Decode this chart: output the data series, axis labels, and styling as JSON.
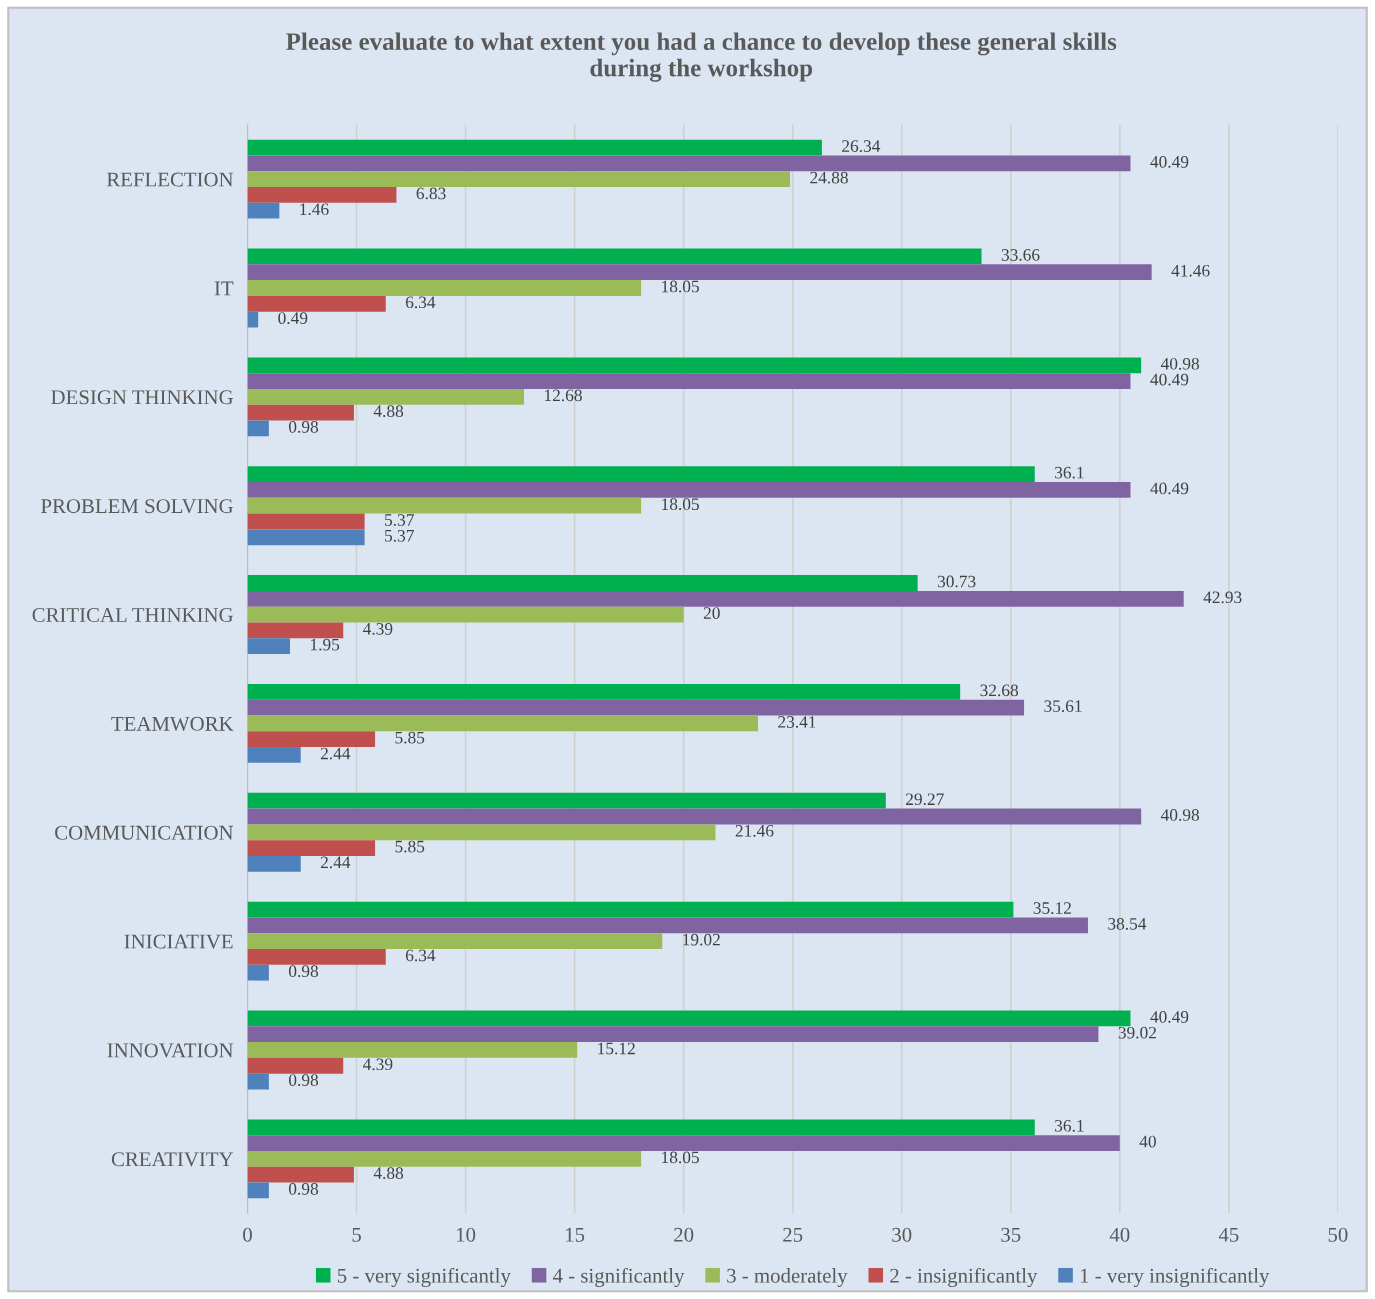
{
  "chart_data": {
    "type": "bar",
    "orientation": "horizontal",
    "title": "Please evaluate to what extent you had a chance to develop these general skills\nduring the workshop",
    "categories": [
      "REFLECTION",
      "IT",
      "DESIGN THINKING",
      "PROBLEM SOLVING",
      "CRITICAL THINKING",
      "TEAMWORK",
      "COMMUNICATION",
      "INICIATIVE",
      "INNOVATION",
      "CREATIVITY"
    ],
    "series": [
      {
        "name": "5 - very significantly",
        "color": "#00b050",
        "values": [
          26.34,
          33.66,
          40.98,
          36.1,
          30.73,
          32.68,
          29.27,
          35.12,
          40.49,
          36.1
        ]
      },
      {
        "name": "4 - significantly",
        "color": "#8064a2",
        "values": [
          40.49,
          41.46,
          40.49,
          40.49,
          42.93,
          35.61,
          40.98,
          38.54,
          39.02,
          40
        ]
      },
      {
        "name": "3 - moderately",
        "color": "#9bbb59",
        "values": [
          24.88,
          18.05,
          12.68,
          18.05,
          20,
          23.41,
          21.46,
          19.02,
          15.12,
          18.05
        ]
      },
      {
        "name": "2 - insignificantly",
        "color": "#c0504d",
        "values": [
          6.83,
          6.34,
          4.88,
          5.37,
          4.39,
          5.85,
          5.85,
          6.34,
          4.39,
          4.88
        ]
      },
      {
        "name": "1 - very insignificantly",
        "color": "#4f81bd",
        "values": [
          1.46,
          0.49,
          0.98,
          5.37,
          1.95,
          2.44,
          2.44,
          0.98,
          0.98,
          0.98
        ]
      }
    ],
    "xlim": [
      0,
      50
    ],
    "xticks": [
      0,
      5,
      10,
      15,
      20,
      25,
      30,
      35,
      40,
      45,
      50
    ],
    "grid": "x",
    "legend": "bottom",
    "data_labels": true
  }
}
